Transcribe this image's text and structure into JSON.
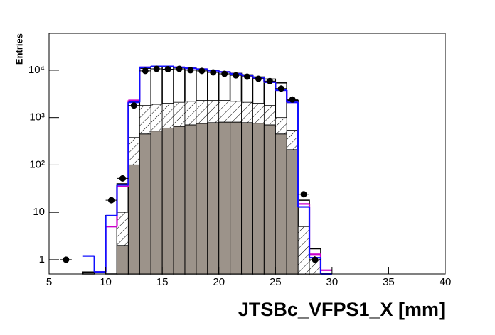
{
  "chart_data": {
    "type": "histogram",
    "ylabel": "Entries",
    "xlabel": "JTSBc_VFPS1_X [mm]",
    "bins": [
      5,
      6,
      7,
      8,
      9,
      10,
      11,
      12,
      13,
      14,
      15,
      16,
      17,
      18,
      19,
      20,
      21,
      22,
      23,
      24,
      25,
      26,
      27,
      28,
      29,
      30,
      31,
      32,
      33,
      34,
      35,
      36,
      37,
      38,
      39,
      40
    ],
    "xlim": [
      5,
      40
    ],
    "xticks": [
      5,
      10,
      15,
      20,
      25,
      30,
      35,
      40
    ],
    "ylim": [
      0.5,
      60000
    ],
    "yticks": [
      1,
      10,
      {
        "value": 100,
        "label": "10²"
      },
      {
        "value": 1000,
        "label": "10³"
      },
      {
        "value": 10000,
        "label": "10⁴"
      }
    ],
    "log_y": true,
    "series": [
      {
        "style": "outline",
        "color": "#000000",
        "values": [
          null,
          null,
          null,
          0.55,
          null,
          8.5,
          40,
          2200,
          11000,
          12000,
          12000,
          11500,
          11000,
          10500,
          10000,
          9200,
          8600,
          8000,
          7200,
          6500,
          5400,
          2300,
          18,
          1.7,
          null,
          null,
          null,
          null,
          null,
          null,
          null,
          null,
          null,
          null,
          null
        ]
      },
      {
        "style": "hatched",
        "color": "#000000",
        "values": [
          null,
          null,
          null,
          null,
          null,
          null,
          10,
          380,
          1800,
          1900,
          2000,
          2100,
          2200,
          2300,
          2300,
          2300,
          2200,
          2100,
          2000,
          1800,
          1000,
          540,
          5,
          1.2,
          null,
          null,
          null,
          null,
          null,
          null,
          null,
          null,
          null,
          null,
          null
        ]
      },
      {
        "style": "filled",
        "color": "#9c938a",
        "values": [
          null,
          null,
          null,
          null,
          null,
          null,
          2,
          100,
          450,
          520,
          600,
          650,
          700,
          750,
          780,
          800,
          800,
          780,
          760,
          700,
          450,
          210,
          null,
          null,
          null,
          null,
          null,
          null,
          null,
          null,
          null,
          null,
          null,
          null,
          null
        ]
      },
      {
        "style": "step",
        "color": "#cc00cc",
        "values": [
          null,
          null,
          null,
          null,
          0.55,
          5,
          35,
          2300,
          11500,
          12000,
          12000,
          11500,
          11000,
          10500,
          9800,
          9200,
          8400,
          7800,
          7000,
          5600,
          3800,
          2100,
          15,
          1.3,
          0.6,
          null,
          null,
          null,
          null,
          null,
          null,
          null,
          null,
          null,
          null
        ]
      },
      {
        "style": "step",
        "color": "#1010ff",
        "values": [
          null,
          null,
          null,
          1.2,
          0.55,
          8.5,
          38,
          2100,
          11500,
          12000,
          12000,
          11500,
          11000,
          10500,
          9800,
          9200,
          8400,
          7800,
          7000,
          5600,
          3800,
          2100,
          13,
          1.1,
          0.5,
          null,
          null,
          null,
          null,
          null,
          null,
          null,
          null,
          null,
          null
        ]
      },
      {
        "style": "points",
        "color": "#000000",
        "values": [
          null,
          1,
          null,
          null,
          null,
          18,
          52,
          1800,
          9700,
          10700,
          10500,
          10700,
          10000,
          9700,
          9000,
          8400,
          7800,
          7300,
          6600,
          5900,
          4100,
          2400,
          24,
          1,
          null,
          null,
          null,
          null,
          null,
          null,
          null,
          null,
          null,
          null,
          null
        ]
      }
    ]
  }
}
